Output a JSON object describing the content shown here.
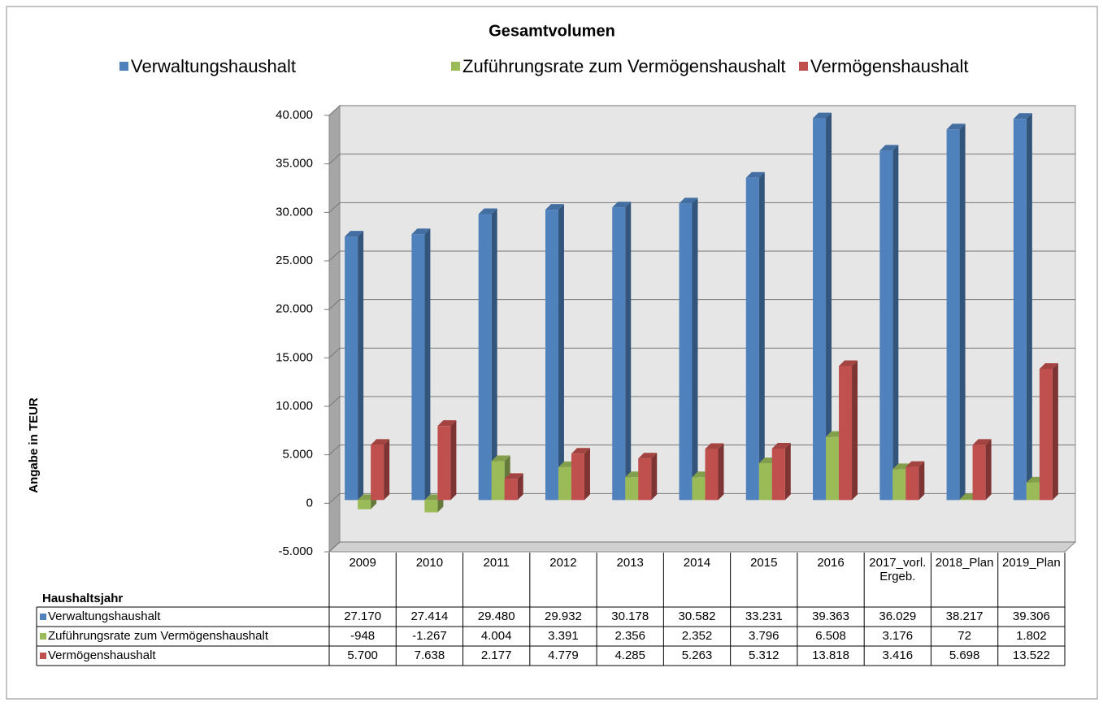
{
  "chart_data": {
    "type": "bar3d",
    "title": "Gesamtvolumen",
    "y_axis_label": "Angabe in TEUR",
    "x_axis_label": "Haushaltsjahr",
    "categories": [
      "2009",
      "2010",
      "2011",
      "2012",
      "2013",
      "2014",
      "2015",
      "2016",
      "2017_vorl.Ergeb.",
      "2018_Plan",
      "2019_Plan"
    ],
    "series": [
      {
        "name": "Verwaltungshaushalt",
        "color": "#4f81bd",
        "values": [
          27170,
          27414,
          29480,
          29932,
          30178,
          30582,
          33231,
          39363,
          36029,
          38217,
          39306
        ],
        "value_labels": [
          "27.170",
          "27.414",
          "29.480",
          "29.932",
          "30.178",
          "30.582",
          "33.231",
          "39.363",
          "36.029",
          "38.217",
          "39.306"
        ]
      },
      {
        "name": "Zuführungsrate zum Vermögenshaushalt",
        "color": "#9bbb59",
        "values": [
          -948,
          -1267,
          4004,
          3391,
          2356,
          2352,
          3796,
          6508,
          3176,
          72,
          1802
        ],
        "value_labels": [
          "-948",
          "-1.267",
          "4.004",
          "3.391",
          "2.356",
          "2.352",
          "3.796",
          "6.508",
          "3.176",
          "72",
          "1.802"
        ]
      },
      {
        "name": "Vermögenshaushalt",
        "color": "#c0504d",
        "values": [
          5700,
          7638,
          2177,
          4779,
          4285,
          5263,
          5312,
          13818,
          3416,
          5698,
          13522
        ],
        "value_labels": [
          "5.700",
          "7.638",
          "2.177",
          "4.779",
          "4.285",
          "5.263",
          "5.312",
          "13.818",
          "3.416",
          "5.698",
          "13.522"
        ]
      }
    ],
    "ylim": [
      -5000,
      40000
    ],
    "yticks": [
      {
        "value": -5000,
        "label": "-5.000"
      },
      0,
      {
        "value": 5000,
        "label": "5.000"
      },
      {
        "value": 10000,
        "label": "10.000"
      },
      {
        "value": 15000,
        "label": "15.000"
      },
      {
        "value": 20000,
        "label": "20.000"
      },
      {
        "value": 25000,
        "label": "25.000"
      },
      {
        "value": 30000,
        "label": "30.000"
      },
      {
        "value": 35000,
        "label": "35.000"
      },
      {
        "value": 40000,
        "label": "40.000"
      }
    ],
    "negative_tick_color": "#ff0000",
    "grid": true,
    "legend": "top",
    "data_table": true
  }
}
